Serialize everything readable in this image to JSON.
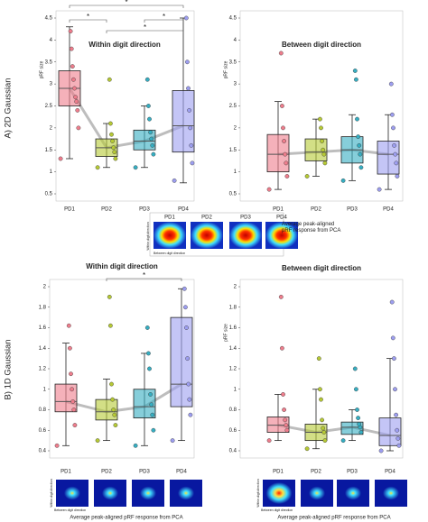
{
  "panel_labels": [
    "A) 2D Gaussian",
    "B) 1D Gaussian"
  ],
  "insets": [
    {
      "labels": [
        "PD1",
        "PD2",
        "PD3",
        "PD4"
      ],
      "caption": "Average peak-aligned pRF response from PCA",
      "y_axis": "Within digit direction",
      "x_axis": "Between digit direction"
    },
    {
      "caption": "Average peak-aligned pRF response from PCA",
      "y_axis": "Within digit direction",
      "x_axis": "Between digit direction"
    },
    {
      "caption": "Average peak-aligned pRF response from PCA",
      "y_axis": "Within digit direction",
      "x_axis": "Between digit direction"
    }
  ],
  "chart_data": [
    {
      "type": "box",
      "title": "Within digit direction",
      "ylabel": "pRF size",
      "categories": [
        "PD1",
        "PD2",
        "PD3",
        "PD4"
      ],
      "colors": [
        "#ee7d8c",
        "#b6c935",
        "#36aec2",
        "#9d9ef0"
      ],
      "ylim": [
        0.5,
        4.5
      ],
      "yticks": [
        0.5,
        1,
        1.5,
        2,
        2.5,
        3,
        3.5,
        4,
        4.5
      ],
      "boxes": [
        {
          "low": 1.3,
          "q1": 2.5,
          "median": 2.9,
          "q3": 3.3,
          "high": 4.3,
          "points": [
            1.3,
            2.0,
            2.4,
            2.6,
            2.7,
            2.9,
            3.1,
            3.4,
            3.8,
            4.2
          ]
        },
        {
          "low": 1.1,
          "q1": 1.35,
          "median": 1.55,
          "q3": 1.75,
          "high": 2.1,
          "points": [
            1.1,
            1.3,
            1.45,
            1.55,
            1.7,
            1.85,
            2.1,
            3.1
          ]
        },
        {
          "low": 1.1,
          "q1": 1.5,
          "median": 1.7,
          "q3": 1.95,
          "high": 2.5,
          "points": [
            1.1,
            1.4,
            1.6,
            1.75,
            1.9,
            2.2,
            2.5,
            3.1
          ]
        },
        {
          "low": 0.75,
          "q1": 1.45,
          "median": 2.05,
          "q3": 2.85,
          "high": 4.5,
          "points": [
            0.8,
            1.2,
            1.6,
            2.0,
            2.4,
            2.9,
            3.5,
            4.5
          ]
        }
      ],
      "significance": [
        {
          "pair": [
            "PD1",
            "PD4"
          ],
          "label": "*"
        },
        {
          "pair": [
            "PD1",
            "PD2"
          ],
          "label": "*"
        },
        {
          "pair": [
            "PD3",
            "PD4"
          ],
          "label": "*"
        },
        {
          "pair": [
            "PD2",
            "PD4"
          ],
          "label": "*"
        }
      ]
    },
    {
      "type": "box",
      "title": "Between digit direction",
      "ylabel": "pRF size",
      "categories": [
        "PD1",
        "PD2",
        "PD3",
        "PD4"
      ],
      "colors": [
        "#ee7d8c",
        "#b6c935",
        "#36aec2",
        "#9d9ef0"
      ],
      "ylim": [
        0.5,
        4.5
      ],
      "yticks": [
        0.5,
        1,
        1.5,
        2,
        2.5,
        3,
        3.5,
        4,
        4.5
      ],
      "boxes": [
        {
          "low": 0.6,
          "q1": 1.0,
          "median": 1.4,
          "q3": 1.85,
          "high": 2.6,
          "points": [
            0.6,
            0.9,
            1.2,
            1.4,
            1.7,
            2.0,
            2.5,
            3.7
          ]
        },
        {
          "low": 0.9,
          "q1": 1.25,
          "median": 1.45,
          "q3": 1.75,
          "high": 2.2,
          "points": [
            0.9,
            1.2,
            1.4,
            1.5,
            1.7,
            2.0,
            2.2
          ]
        },
        {
          "low": 0.8,
          "q1": 1.2,
          "median": 1.5,
          "q3": 1.8,
          "high": 2.3,
          "points": [
            0.8,
            1.1,
            1.4,
            1.6,
            1.8,
            2.2,
            3.1,
            3.3
          ]
        },
        {
          "low": 0.6,
          "q1": 0.95,
          "median": 1.4,
          "q3": 1.7,
          "high": 2.3,
          "points": [
            0.6,
            0.9,
            1.2,
            1.4,
            1.6,
            2.0,
            2.3,
            3.0
          ]
        }
      ]
    },
    {
      "type": "box",
      "title": "Within digit direction",
      "categories": [
        "PD1",
        "PD2",
        "PD3",
        "PD4"
      ],
      "colors": [
        "#ee7d8c",
        "#b6c935",
        "#36aec2",
        "#9d9ef0"
      ],
      "ylim": [
        0.4,
        2
      ],
      "yticks": [
        0.4,
        0.6,
        0.8,
        1,
        1.2,
        1.4,
        1.6,
        1.8,
        2
      ],
      "boxes": [
        {
          "low": 0.45,
          "q1": 0.78,
          "median": 0.88,
          "q3": 1.05,
          "high": 1.45,
          "points": [
            0.45,
            0.65,
            0.8,
            0.88,
            1.0,
            1.15,
            1.4,
            1.62
          ]
        },
        {
          "low": 0.5,
          "q1": 0.7,
          "median": 0.78,
          "q3": 0.9,
          "high": 1.1,
          "points": [
            0.5,
            0.65,
            0.75,
            0.8,
            0.9,
            1.05,
            1.62,
            1.9
          ]
        },
        {
          "low": 0.45,
          "q1": 0.72,
          "median": 0.83,
          "q3": 1.0,
          "high": 1.35,
          "points": [
            0.45,
            0.6,
            0.75,
            0.85,
            0.95,
            1.2,
            1.35,
            1.6
          ]
        },
        {
          "low": 0.5,
          "q1": 0.83,
          "median": 1.05,
          "q3": 1.7,
          "high": 1.98,
          "points": [
            0.5,
            0.75,
            0.9,
            1.05,
            1.3,
            1.6,
            1.8,
            1.98
          ]
        }
      ],
      "significance": [
        {
          "pair": [
            "PD2",
            "PD4"
          ],
          "label": "*"
        }
      ]
    },
    {
      "type": "box",
      "title": "Between digit direction",
      "ylabel": "pRF size",
      "categories": [
        "PD1",
        "PD2",
        "PD3",
        "PD4"
      ],
      "colors": [
        "#ee7d8c",
        "#b6c935",
        "#36aec2",
        "#9d9ef0"
      ],
      "ylim": [
        0.4,
        2
      ],
      "yticks": [
        0.4,
        0.6,
        0.8,
        1,
        1.2,
        1.4,
        1.6,
        1.8,
        2
      ],
      "boxes": [
        {
          "low": 0.5,
          "q1": 0.58,
          "median": 0.65,
          "q3": 0.73,
          "high": 0.95,
          "points": [
            0.5,
            0.6,
            0.65,
            0.7,
            0.8,
            0.95,
            1.4,
            1.9
          ]
        },
        {
          "low": 0.42,
          "q1": 0.5,
          "median": 0.58,
          "q3": 0.66,
          "high": 1.0,
          "points": [
            0.42,
            0.5,
            0.58,
            0.62,
            0.7,
            0.9,
            1.0,
            1.3
          ]
        },
        {
          "low": 0.5,
          "q1": 0.56,
          "median": 0.63,
          "q3": 0.68,
          "high": 0.8,
          "points": [
            0.5,
            0.58,
            0.63,
            0.66,
            0.72,
            0.8,
            1.0,
            1.2
          ]
        },
        {
          "low": 0.4,
          "q1": 0.45,
          "median": 0.55,
          "q3": 0.72,
          "high": 1.3,
          "points": [
            0.4,
            0.45,
            0.52,
            0.6,
            0.75,
            1.0,
            1.3,
            1.5,
            1.85
          ]
        }
      ]
    }
  ]
}
